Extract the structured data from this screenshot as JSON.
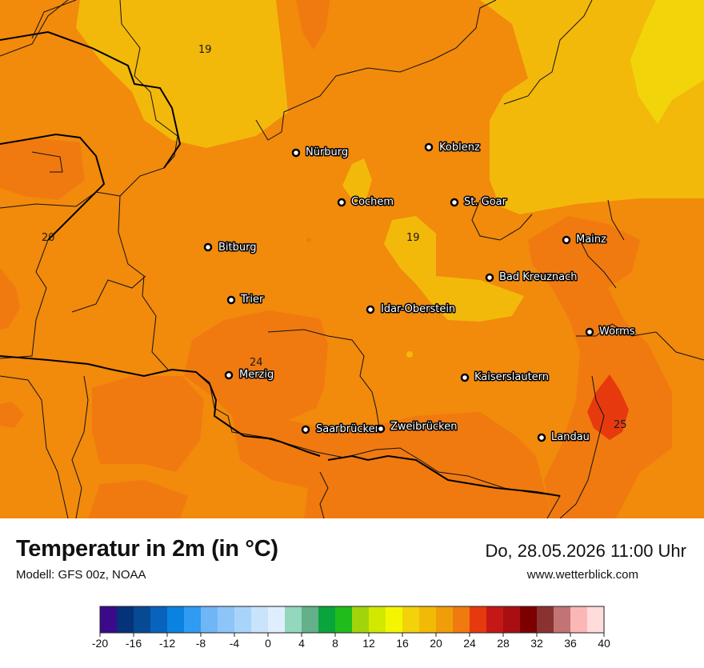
{
  "title": "Temperatur in 2m (in °C)",
  "model": "Modell: GFS 00z, NOAA",
  "datetime": "Do, 28.05.2026 11:00 Uhr",
  "site": "www.wetterblick.com",
  "cities": [
    {
      "name": "Nürburg"
    },
    {
      "name": "Koblenz"
    },
    {
      "name": "Cochem"
    },
    {
      "name": "St. Goar"
    },
    {
      "name": "Mainz"
    },
    {
      "name": "Bitburg"
    },
    {
      "name": "Bad Kreuznach"
    },
    {
      "name": "Trier"
    },
    {
      "name": "Idar-Oberstein"
    },
    {
      "name": "Worms"
    },
    {
      "name": "Merzig"
    },
    {
      "name": "Kaiserslautern"
    },
    {
      "name": "Saarbrücken"
    },
    {
      "name": "Zweibrücken"
    },
    {
      "name": "Landau"
    }
  ],
  "isotherm_labels": [
    "19",
    "20",
    "19",
    "24",
    "25"
  ],
  "legend": {
    "ticks": [
      "-20",
      "-16",
      "-12",
      "-8",
      "-4",
      "0",
      "4",
      "8",
      "12",
      "16",
      "20",
      "24",
      "28",
      "32",
      "36",
      "40"
    ],
    "colors": [
      "#3b0a8a",
      "#06327a",
      "#054a92",
      "#0863bd",
      "#0a82e0",
      "#2f9bf2",
      "#6fb6f7",
      "#8dc5f8",
      "#a9d4fa",
      "#c9e3fb",
      "#dfeefd",
      "#93d8be",
      "#63b08a",
      "#09a43b",
      "#1fbc1b",
      "#a2d40b",
      "#d2e800",
      "#f3f600",
      "#f3d20b",
      "#f2b906",
      "#f09d0a",
      "#f07a10",
      "#e63a0e",
      "#c61717",
      "#a80e12",
      "#7d0000",
      "#8a3232",
      "#c27474",
      "#fbb7b6",
      "#ffdcdc"
    ]
  }
}
